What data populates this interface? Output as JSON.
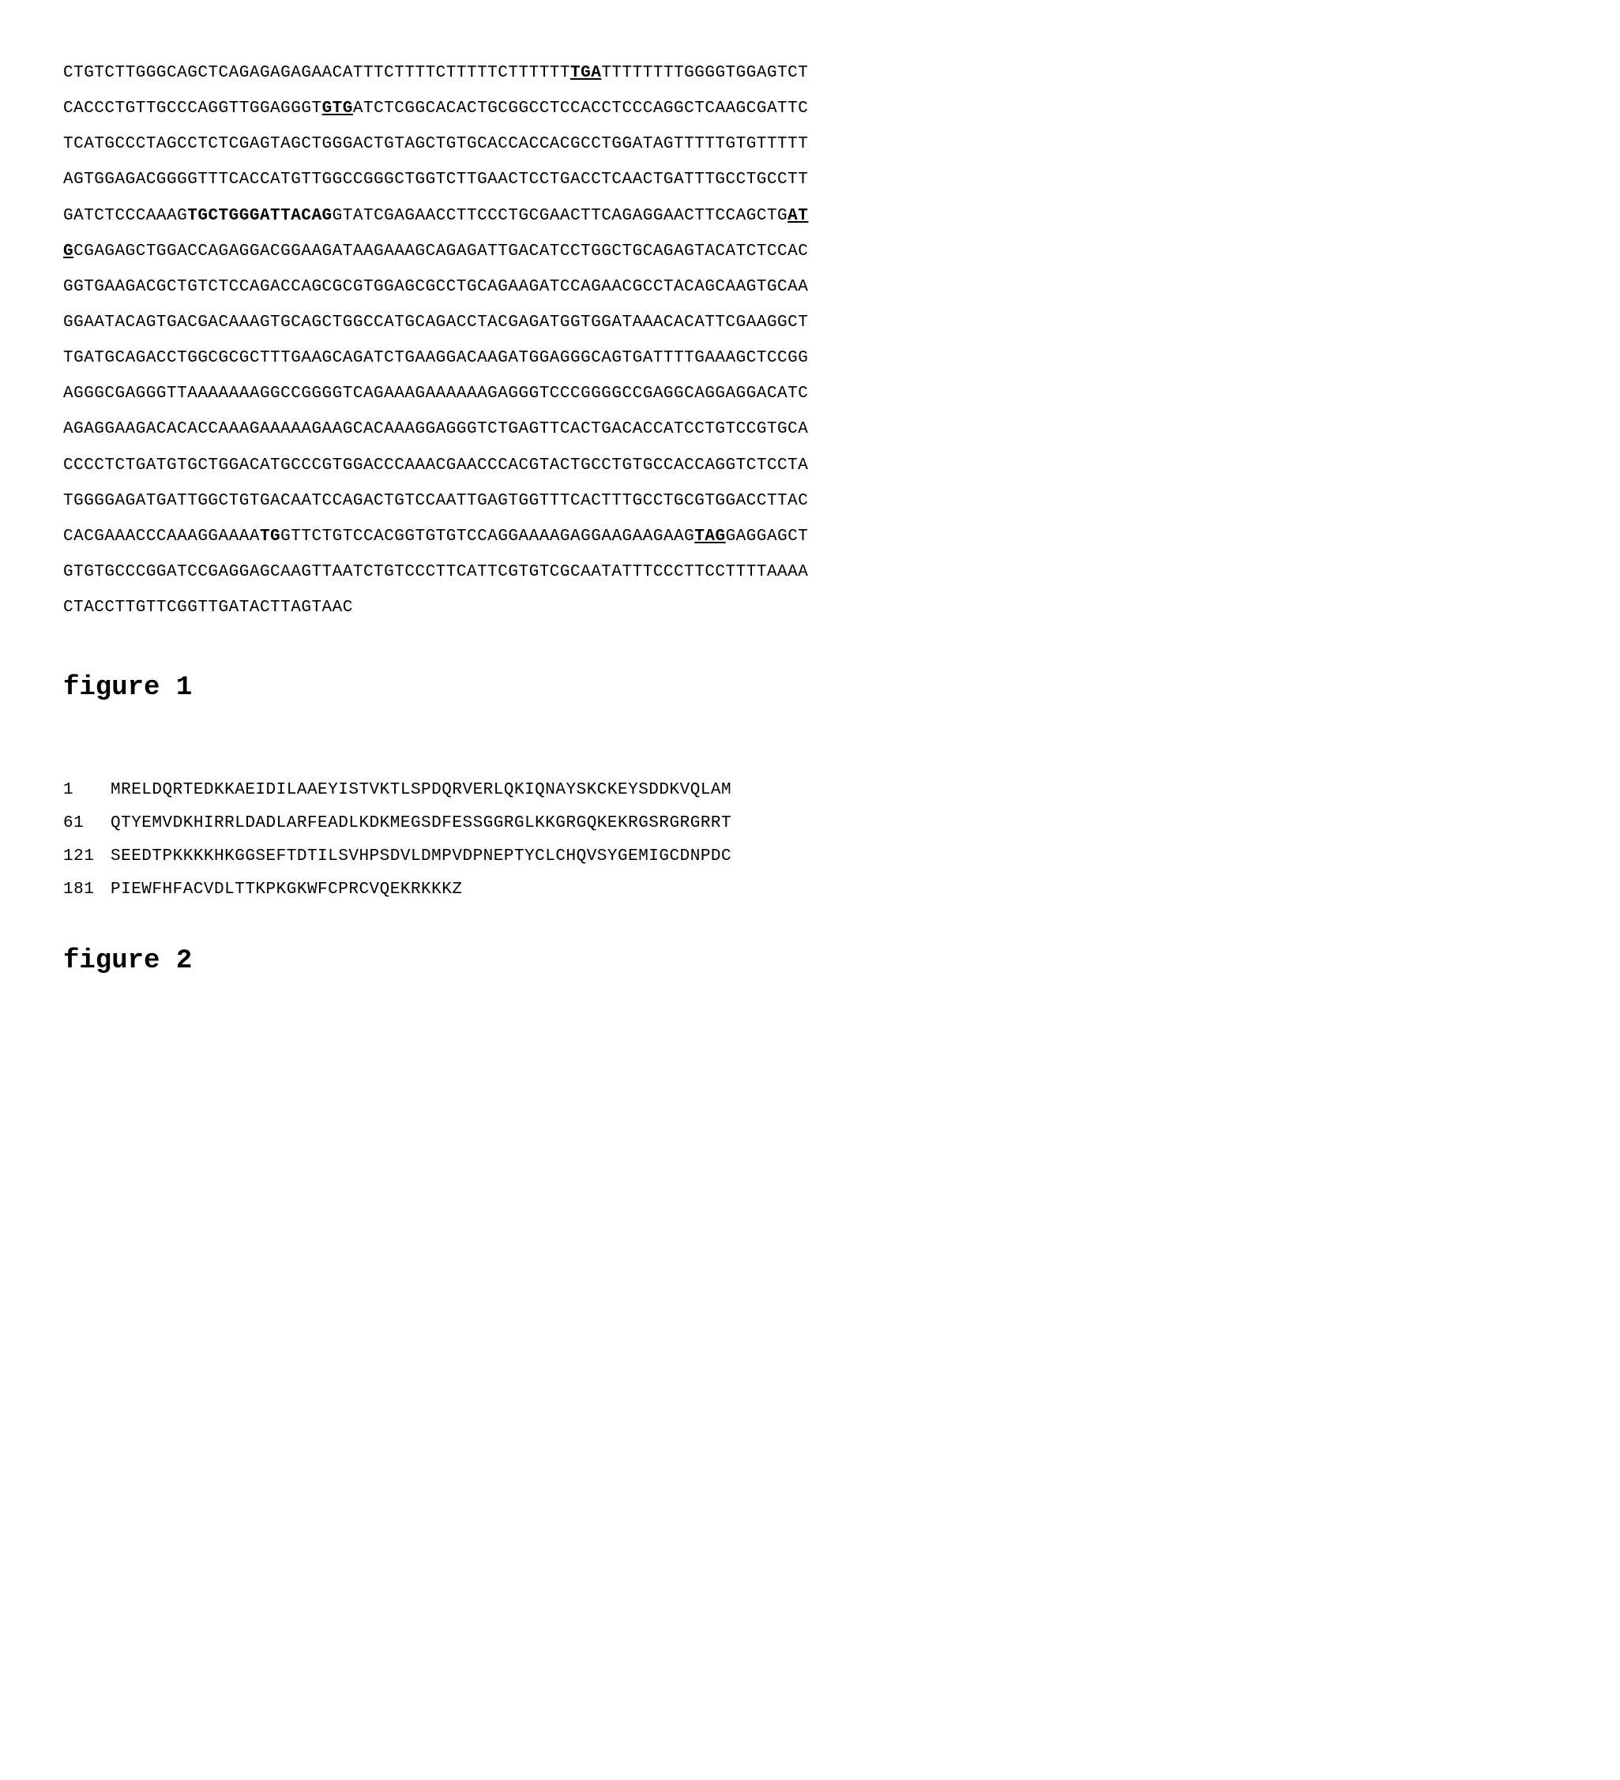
{
  "nucleotide": {
    "lines": [
      [
        {
          "text": "CTGTCTTGGGCAGCTCAGAGAGAGAACATTTCTTTTCTTTTTCTTTTTT",
          "style": "normal"
        },
        {
          "text": "TGA",
          "style": "bold-underline"
        },
        {
          "text": "TTTTTTTTGGGGTGGAGTCT",
          "style": "normal"
        }
      ],
      [
        {
          "text": "CACCCTGTTGCCCAGGTTGGAGGGT",
          "style": "normal"
        },
        {
          "text": "GTG",
          "style": "bold-underline"
        },
        {
          "text": "ATCTCGGCACACTGCGGCCTCCACCTCCCAGGCTCAAGCGATTC",
          "style": "normal"
        }
      ],
      [
        {
          "text": "TCATGCCCTAGCCTCTCGAGTAGCTGGGACTGTAGCTGTGCACCACCACGCCTGGATAGTTTTTGTGTTTTT",
          "style": "normal"
        }
      ],
      [
        {
          "text": "AGTGGAGACGGGGTTTCACCATGTTGGCCGGGCTGGTCTTGAACTCCTGACCTCAACTGATTTGCCTGCCTT",
          "style": "normal"
        }
      ],
      [
        {
          "text": "GATCTCCCAAAG",
          "style": "normal"
        },
        {
          "text": "TGCTGGGATTACAG",
          "style": "bold"
        },
        {
          "text": "GTATCGAGAACCTTCCCTGCGAACTTCAGAGGAACTTCCAGCTG",
          "style": "normal"
        },
        {
          "text": "AT",
          "style": "bold-underline"
        }
      ],
      [
        {
          "text": "G",
          "style": "bold-underline"
        },
        {
          "text": "CGAGAGCTGGACCAGAGGACGGAAGATAAGAAAGCAGAGATTGACATCCTGGCTGCAGAGTACATCTCCAC",
          "style": "normal"
        }
      ],
      [
        {
          "text": "GGTGAAGACGCTGTCTCCAGACCAGCGCGTGGAGCGCCTGCAGAAGATCCAGAACGCCTACAGCAAGTGCAA",
          "style": "normal"
        }
      ],
      [
        {
          "text": "GGAATACAGTGACGACAAAGTGCAGCTGGCCATGCAGACCTACGAGATGGTGGATAAACACATTCGAAGGCT",
          "style": "normal"
        }
      ],
      [
        {
          "text": "TGATGCAGACCTGGCGCGCTTTGAAGCAGATCTGAAGGACAAGATGGAGGGCAGTGATTTTGAAAGCTCCGG",
          "style": "normal"
        }
      ],
      [
        {
          "text": "AGGGCGAGGGTTAAAAAAAGGCCGGGGTCAGAAAGAAAAAAGAGGGTCCCGGGGCCGAGGCAGGAGGACATC",
          "style": "normal"
        }
      ],
      [
        {
          "text": "AGAGGAAGACACACCAAAGAAAAAGAAGCACAAAGGAGGGTCTGAGTTCACTGACACCATCCTGTCCGTGCA",
          "style": "normal"
        }
      ],
      [
        {
          "text": "CCCCTCTGATGTGCTGGACATGCCCGTGGACCCAAACGAACCCACGTACTGCCTGTGCCACCAGGTCTCCTA",
          "style": "normal"
        }
      ],
      [
        {
          "text": "TGGGGAGATGATTGGCTGTGACAATCCAGACTGTCCAATTGAGTGGTTTCACTTTGCCTGCGTGGACCTTAC",
          "style": "normal"
        }
      ],
      [
        {
          "text": "CACGAAACCCAAAGGAAAA",
          "style": "normal"
        },
        {
          "text": "TG",
          "style": "bold"
        },
        {
          "text": "GTTCTGTCCACGGTGTGTCCAGGAAAAGAGGAAGAAGAAG",
          "style": "normal"
        },
        {
          "text": "TAG",
          "style": "bold-underline"
        },
        {
          "text": "GAGGAGCT",
          "style": "normal"
        }
      ],
      [
        {
          "text": "GTGTGCCCGGATCCGAGGAGCAAGTTAATCTGTCCCTTCATTCGTGTCGCAATATTTCCCTTCCTTTTAAAA",
          "style": "normal"
        }
      ],
      [
        {
          "text": "CTACCTTGTTCGGTTGATACTTAGTAAC",
          "style": "normal"
        }
      ]
    ]
  },
  "figure1_caption": "figure 1",
  "protein": {
    "lines": [
      {
        "pos": "1",
        "seq": "MRELDQRTEDKKAEIDILAAEYISTVKTLSPDQRVERLQKIQNAYSKCKEYSDDKVQLAM"
      },
      {
        "pos": "61",
        "seq": "QTYEMVDKHIRRLDADLARFEADLKDKMEGSDFESSGGRGLKKGRGQKEKRGSRGRGRRT"
      },
      {
        "pos": "121",
        "seq": "SEEDTPKKKKHKGGSEFTDTILSVHPSDVLDMPVDPNEPTYCLCHQVSYGEMIGCDNPDC"
      },
      {
        "pos": "181",
        "seq": "PIEWFHFACVDLTTKPKGKWFCPRCVQEKRKKKZ"
      }
    ]
  },
  "figure2_caption": "figure 2",
  "style": {
    "background_color": "#ffffff",
    "text_color": "#000000",
    "font_family": "Courier New",
    "seq_fontsize": 21,
    "caption_fontsize": 34,
    "seq_line_height": 2.15,
    "letter_spacing": 0.5
  }
}
